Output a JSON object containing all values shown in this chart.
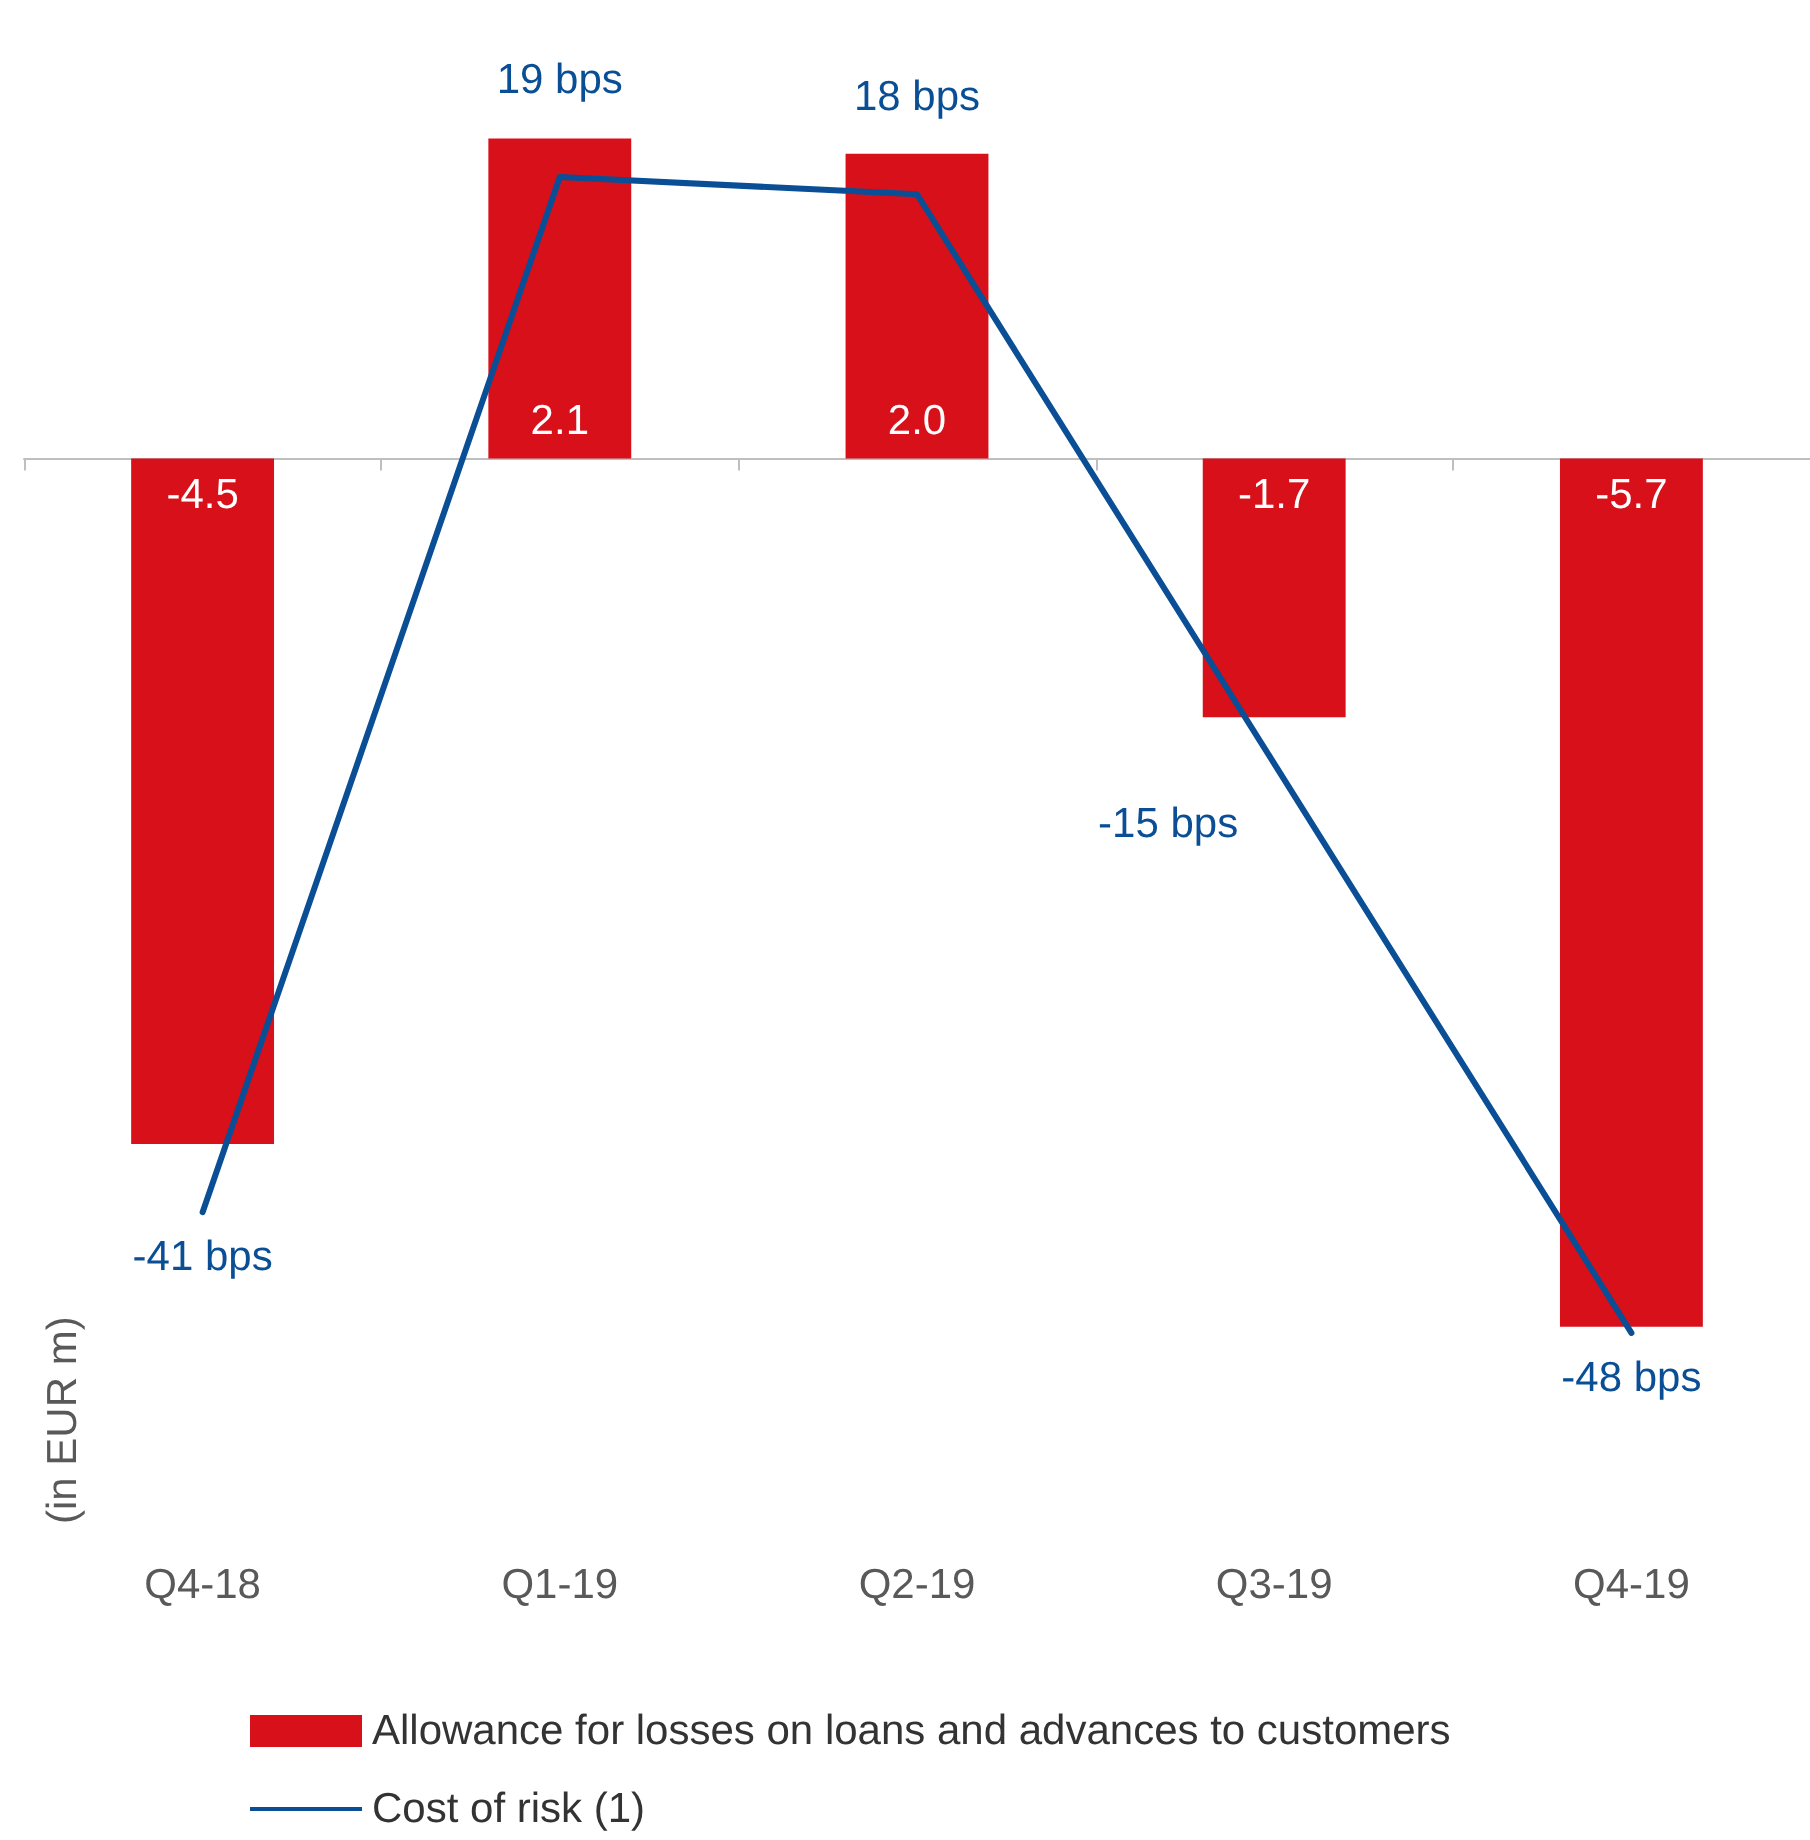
{
  "chart_data": {
    "type": "bar",
    "ylabel": "(in EUR m)",
    "categories": [
      "Q4-18",
      "Q1-19",
      "Q2-19",
      "Q3-19",
      "Q4-19"
    ],
    "series": [
      {
        "name": "Allowance for losses on loans and advances to customers",
        "color": "#d7101a",
        "values": [
          -4.5,
          2.1,
          2.0,
          -1.7,
          -5.7
        ],
        "value_labels": [
          "-4.5",
          "2.1",
          "2.0",
          "-1.7",
          "-5.7"
        ]
      },
      {
        "name": "Cost of risk (1)",
        "type": "line",
        "axis": "y2",
        "color": "#0a4f95",
        "values": [
          -41,
          19,
          18,
          -15,
          -48
        ],
        "value_labels": [
          "-41 bps",
          "19 bps",
          "18 bps",
          "-15 bps",
          "-48 bps"
        ]
      }
    ],
    "tick_labels": "x",
    "grid": false,
    "legend": "bottom",
    "marker": "none",
    "line_style": "solid"
  }
}
